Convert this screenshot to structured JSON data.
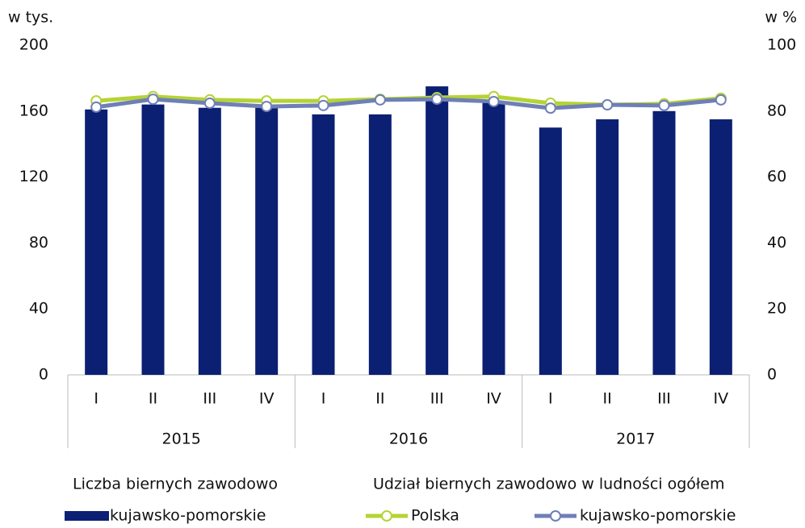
{
  "chart_data": {
    "type": "bar",
    "y_unit_label": "w tys.",
    "y2_unit_label": "w %",
    "categories": [
      "I",
      "II",
      "III",
      "IV",
      "I",
      "II",
      "III",
      "IV",
      "I",
      "II",
      "III",
      "IV"
    ],
    "groups": [
      "2015",
      "2016",
      "2017"
    ],
    "ylim": [
      0,
      200
    ],
    "yticks": [
      0,
      40,
      80,
      120,
      160,
      200
    ],
    "y2lim": [
      0,
      100
    ],
    "y2ticks": [
      0,
      20,
      40,
      60,
      80,
      100
    ],
    "legend_groups": [
      "Liczba biernych zawodowo",
      "Udział biernych zawodowo w ludności ogółem"
    ],
    "series": [
      {
        "name": "kujawsko-pomorskie",
        "type": "bar",
        "axis": "y",
        "color": "#0b1f73",
        "values": [
          161,
          164,
          162,
          162,
          158,
          158,
          175,
          165,
          150,
          155,
          160,
          155
        ]
      },
      {
        "name": "Polska",
        "type": "line",
        "axis": "y2",
        "color": "#b5d334",
        "values": [
          83.1,
          84.4,
          83.4,
          83.1,
          83.1,
          83.6,
          84.1,
          84.4,
          82.4,
          81.9,
          82.2,
          83.9
        ]
      },
      {
        "name": "kujawsko-pomorskie",
        "type": "line",
        "axis": "y2",
        "color": "#6f7fb7",
        "values": [
          81.2,
          83.6,
          82.4,
          81.4,
          81.7,
          83.4,
          83.6,
          82.9,
          80.9,
          81.9,
          81.7,
          83.4
        ]
      }
    ]
  }
}
